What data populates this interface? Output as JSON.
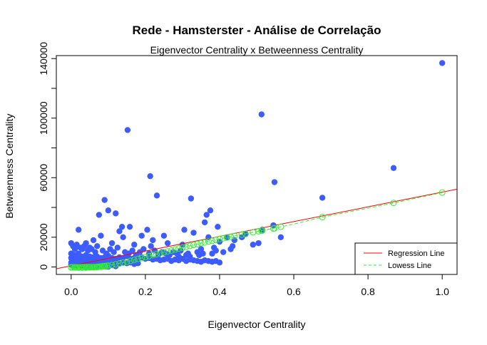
{
  "chart_data": {
    "type": "scatter",
    "title": "Rede - Hamsterster - Análise de Correlação",
    "subtitle": "Eigenvector Centrality x Betweenness Centrality",
    "xlabel": "Eigenvector Centrality",
    "ylabel": "Betweenness Centrality",
    "xlim": [
      -0.04,
      1.04
    ],
    "ylim": [
      -5000,
      142000
    ],
    "xticks": [
      "0.0",
      "0.2",
      "0.4",
      "0.6",
      "0.8",
      "1.0"
    ],
    "yticks": [
      "0",
      "20000",
      "60000",
      "100000",
      "140000"
    ],
    "grid": false,
    "series": [
      {
        "kind": "points",
        "color": "#3d5cff",
        "x": [
          1.0,
          0.513,
          0.152,
          0.869,
          0.213,
          0.548,
          0.231,
          0.677,
          0.323,
          0.09,
          0.375,
          0.1,
          0.365,
          0.075,
          0.12,
          0.137,
          0.158,
          0.305,
          0.36,
          0.395,
          0.515,
          0.545,
          0.02,
          0.25,
          0.19,
          0.205,
          0.42,
          0.47,
          0.565,
          0.505,
          0.13,
          0.08,
          0.06,
          0.04,
          0.11,
          0.14,
          0.17,
          0.22,
          0.26,
          0.3,
          0.33,
          0.37,
          0.4,
          0.44,
          0.46,
          0.49,
          0.0,
          0.005,
          0.01,
          0.015,
          0.025,
          0.03,
          0.035,
          0.045,
          0.05,
          0.055,
          0.065,
          0.07,
          0.085,
          0.095,
          0.105,
          0.115,
          0.125,
          0.145,
          0.155,
          0.165,
          0.175,
          0.185,
          0.195,
          0.21,
          0.215,
          0.225,
          0.235,
          0.245,
          0.255,
          0.265,
          0.275,
          0.285,
          0.29,
          0.295,
          0.31,
          0.315,
          0.32,
          0.34,
          0.345,
          0.35,
          0.355,
          0.38,
          0.385,
          0.39,
          0.41,
          0.43,
          0.435,
          0.0,
          0.01,
          0.02,
          0.03,
          0.04,
          0.05,
          0.06,
          0.07,
          0.08,
          0.09,
          0.1,
          0.11,
          0.12,
          0.13,
          0.14,
          0.15,
          0.16,
          0.17,
          0.18,
          0.19,
          0.2,
          0.21,
          0.22,
          0.23,
          0.24,
          0.25,
          0.26,
          0.27,
          0.28,
          0.29,
          0.3,
          0.31,
          0.32,
          0.33,
          0.34,
          0.35,
          0.36,
          0.37,
          0.38,
          0.39,
          0.4,
          0.0,
          0.01,
          0.02,
          0.03,
          0.04,
          0.05,
          0.06,
          0.07,
          0.08,
          0.09,
          0.1,
          0.11,
          0.12,
          0.13,
          0.14,
          0.15,
          0.16,
          0.17,
          0.18,
          0.0,
          0.01,
          0.02,
          0.03,
          0.04,
          0.05,
          0.06,
          0.07,
          0.08,
          0.09,
          0.1,
          0.11,
          0.12,
          0.0,
          0.005,
          0.01,
          0.015,
          0.02,
          0.025,
          0.03,
          0.035,
          0.04,
          0.045,
          0.05,
          0.055,
          0.06,
          0.065,
          0.07,
          0.075,
          0.08,
          0.085,
          0.09,
          0.095,
          0.1
        ],
        "y": [
          137000,
          102500,
          92000,
          66500,
          61000,
          57000,
          48000,
          46500,
          46000,
          45000,
          38000,
          38000,
          35000,
          35000,
          36000,
          27000,
          27000,
          25000,
          30000,
          27000,
          25000,
          28000,
          25000,
          21000,
          21000,
          25000,
          20000,
          22000,
          20000,
          16000,
          24000,
          21000,
          18000,
          16000,
          16000,
          20000,
          15000,
          18000,
          16000,
          15000,
          23000,
          20000,
          17000,
          18000,
          20000,
          15000,
          16000,
          14000,
          12000,
          15000,
          13000,
          12000,
          14000,
          11000,
          13000,
          12000,
          10000,
          14000,
          11000,
          9000,
          12000,
          10000,
          13000,
          10000,
          9000,
          11000,
          8000,
          10000,
          12000,
          9000,
          14000,
          11000,
          8000,
          10000,
          9000,
          8000,
          10000,
          9000,
          7000,
          11000,
          8000,
          9000,
          7000,
          10000,
          8000,
          12000,
          9000,
          9000,
          13000,
          11000,
          10000,
          12000,
          14000,
          9000,
          8000,
          9000,
          7000,
          8000,
          7000,
          6500,
          7000,
          6000,
          6500,
          7500,
          6000,
          5500,
          6500,
          6000,
          7000,
          5500,
          6000,
          5000,
          6500,
          5500,
          6000,
          5000,
          5500,
          4500,
          5000,
          5500,
          4000,
          5000,
          4500,
          5500,
          4000,
          5000,
          4500,
          4000,
          3500,
          4500,
          4000,
          3500,
          4000,
          3000,
          6000,
          5000,
          5500,
          4500,
          5000,
          4000,
          4500,
          3500,
          4000,
          3000,
          3500,
          3000,
          4000,
          2500,
          3000,
          2500,
          3000,
          2000,
          2500,
          3000,
          2500,
          2000,
          2500,
          1500,
          2000,
          1500,
          2000,
          1000,
          1500,
          1000,
          1500,
          500,
          1500,
          1000,
          1200,
          800,
          1000,
          600,
          900,
          700,
          500,
          800,
          400,
          600,
          300,
          500,
          400,
          300,
          500,
          200,
          400,
          300,
          200
        ]
      },
      {
        "kind": "open-circles",
        "color": "#33ee33",
        "x": [
          1.0,
          0.869,
          0.677,
          0.565,
          0.548,
          0.545,
          0.515,
          0.513,
          0.505,
          0.49,
          0.47,
          0.46,
          0.44,
          0.43,
          0.42,
          0.41,
          0.4,
          0.39,
          0.38,
          0.37,
          0.36,
          0.35,
          0.34,
          0.33,
          0.32,
          0.31,
          0.3,
          0.29,
          0.28,
          0.27,
          0.26,
          0.25,
          0.24,
          0.23,
          0.22,
          0.21,
          0.2,
          0.19,
          0.18,
          0.17,
          0.16,
          0.15,
          0.14,
          0.13,
          0.12,
          0.11,
          0.1,
          0.09,
          0.08,
          0.07,
          0.06,
          0.05,
          0.04,
          0.03,
          0.02,
          0.01,
          0.0
        ],
        "y": [
          50000,
          43000,
          33500,
          27000,
          26000,
          25800,
          24500,
          24400,
          24000,
          23300,
          22200,
          21800,
          20800,
          20300,
          19800,
          19300,
          18800,
          18200,
          17600,
          17100,
          16500,
          16000,
          15400,
          14800,
          14200,
          13600,
          13000,
          12400,
          11800,
          11100,
          10500,
          9900,
          9200,
          8600,
          8000,
          7300,
          6700,
          6000,
          5400,
          4700,
          4100,
          3500,
          2900,
          2300,
          1800,
          1300,
          900,
          500,
          200,
          0,
          -200,
          -300,
          -400,
          -400,
          -400,
          -300,
          -200
        ]
      }
    ],
    "regression_line": {
      "name": "Regression Line",
      "color": "#ff0000",
      "intercept": 800,
      "slope": 49500
    },
    "lowess_line": {
      "name": "Lowess Line",
      "color": "#33ee33",
      "x": [
        0.0,
        0.05,
        0.1,
        0.15,
        0.2,
        0.25,
        0.3,
        0.35,
        0.4,
        0.45,
        0.5,
        0.55,
        0.6,
        0.677,
        0.8,
        0.869,
        1.0
      ],
      "y": [
        -200,
        -300,
        900,
        3500,
        6700,
        9900,
        13000,
        16000,
        18800,
        21300,
        23800,
        26200,
        28800,
        33500,
        39500,
        43000,
        50000
      ]
    },
    "legend": {
      "position": "bottom-right",
      "entries": [
        "Regression Line",
        "Lowess Line"
      ]
    }
  }
}
